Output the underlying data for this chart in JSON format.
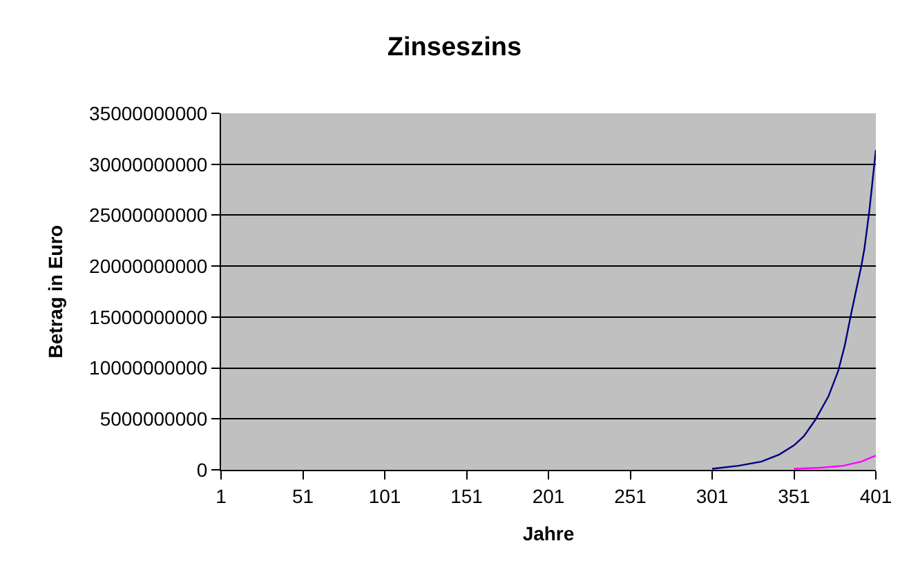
{
  "chart_data": {
    "type": "line",
    "title": "Zinseszins",
    "xlabel": "Jahre",
    "ylabel": "Betrag in Euro",
    "xlim": [
      1,
      401
    ],
    "xticks": [
      1,
      51,
      101,
      151,
      201,
      251,
      301,
      351,
      401
    ],
    "ylim": [
      0,
      35000000000
    ],
    "yticks": [
      0,
      5000000000,
      10000000000,
      15000000000,
      20000000000,
      25000000000,
      30000000000,
      35000000000
    ],
    "grid": "y",
    "marker": "none",
    "line_style": "solid",
    "series": [
      {
        "color": "#000080",
        "x": [
          301,
          317,
          331,
          342,
          351,
          357,
          364,
          372,
          378,
          382,
          386,
          392,
          394,
          397,
          401
        ],
        "values": [
          100000000,
          400000000,
          800000000,
          1500000000,
          2400000000,
          3300000000,
          4900000000,
          7200000000,
          9700000000,
          12200000000,
          15400000000,
          19900000000,
          21700000000,
          25400000000,
          31400000000
        ]
      },
      {
        "color": "#ff00ff",
        "x": [
          351,
          367,
          381,
          392,
          401
        ],
        "values": [
          100000000,
          200000000,
          400000000,
          800000000,
          1400000000
        ]
      }
    ]
  }
}
